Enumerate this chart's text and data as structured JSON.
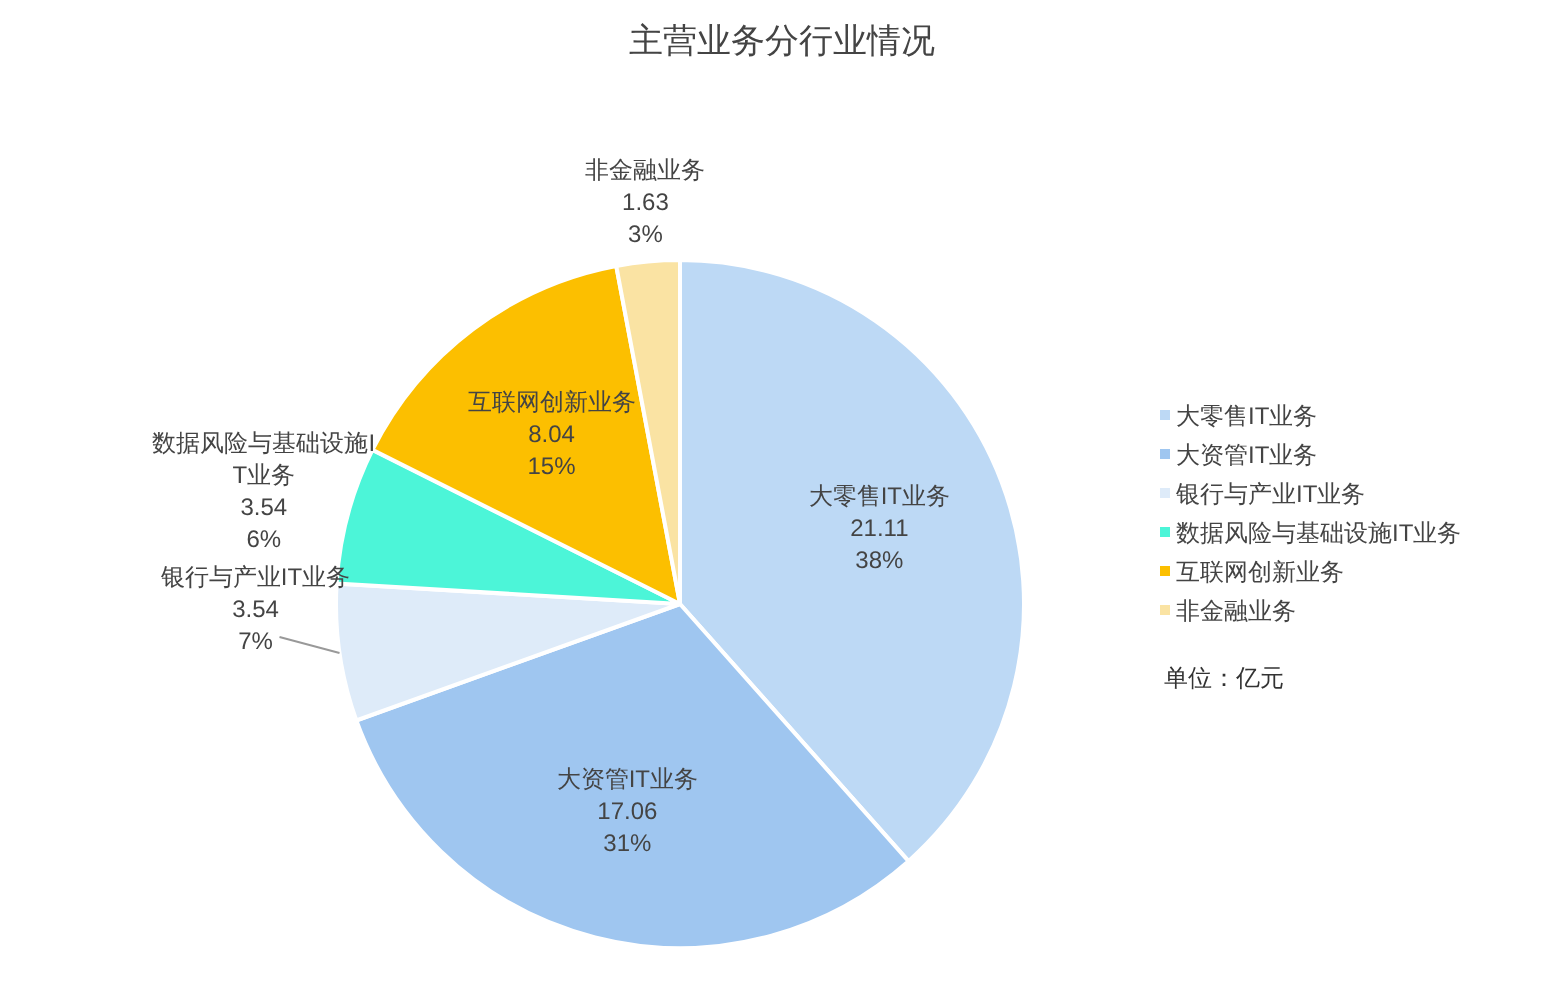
{
  "chart_data": {
    "type": "pie",
    "title": "主营业务分行业情况",
    "categories": [
      "大零售IT业务",
      "大资管IT业务",
      "银行与产业IT业务",
      "数据风险与基础设施IT业务",
      "互联网创新业务",
      "非金融业务"
    ],
    "values": [
      21.11,
      17.06,
      3.54,
      3.54,
      8.04,
      1.63
    ],
    "value_labels": [
      "21.11\n38%",
      "17.06\n31%",
      "3.54\n7%",
      "3.54\n6%",
      "8.04\n15%",
      "1.63\n3%"
    ],
    "colors": [
      "#bdd9f5",
      "#9fc6f0",
      "#deebf9",
      "#4cf5d8",
      "#fcbf00",
      "#fae3a3"
    ],
    "legend": "right",
    "annotations": [
      "单位：亿元"
    ]
  }
}
